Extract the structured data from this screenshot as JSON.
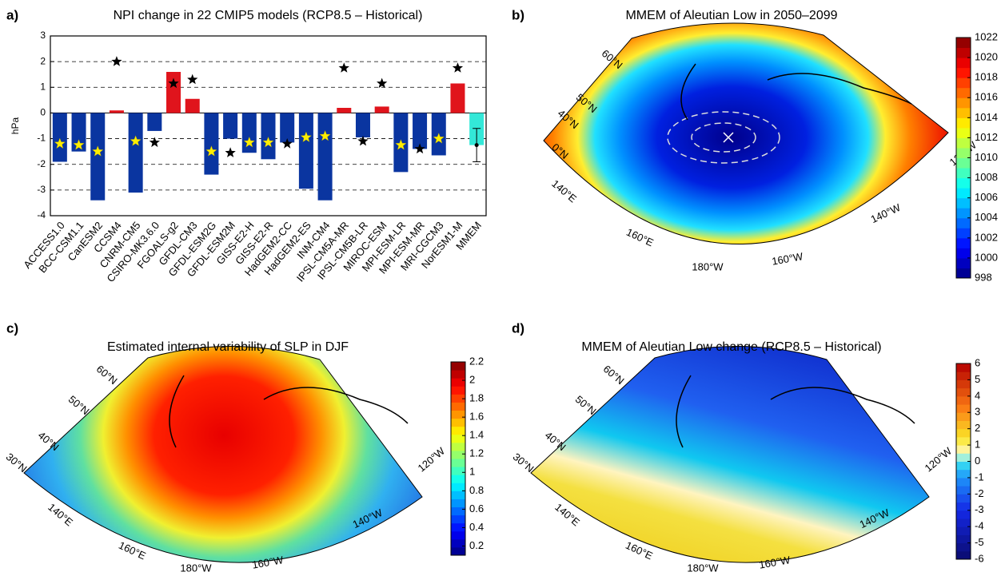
{
  "chart_data": [
    {
      "type": "bar",
      "panel": "a)",
      "title": "NPI change in 22 CMIP5 models (RCP8.5 – Historical)",
      "ylabel": "hPa",
      "categories": [
        "ACCESS1.0",
        "BCC-CSM1.1",
        "CanESM2",
        "CCSM4",
        "CNRM-CM5",
        "CSIRO-MK3.6.0",
        "FGOALS-g2",
        "GFDL-CM3",
        "GFDL-ESM2G",
        "GFDL-ESM2M",
        "GISS-E2-H",
        "GISS-E2-R",
        "HadGEM2-CC",
        "HadGEM2-ES",
        "INM-CM4",
        "IPSL-CM5A-MR",
        "IPSL-CM5B-LR",
        "MIROC-ESM",
        "MPI-ESM-LR",
        "MPI-ESM-MR",
        "MRI-CGCM3",
        "NorESM1-M",
        "MMEM"
      ],
      "values": [
        -1.9,
        -1.5,
        -3.4,
        0.1,
        -3.1,
        -0.7,
        1.6,
        0.55,
        -2.4,
        -1.0,
        -1.55,
        -1.8,
        -1.15,
        -2.95,
        -3.4,
        0.2,
        -0.95,
        0.25,
        -2.3,
        -1.4,
        -1.65,
        1.15,
        -1.25
      ],
      "colors": [
        "#0a35a0",
        "#0a35a0",
        "#0a35a0",
        "#e0141c",
        "#0a35a0",
        "#0a35a0",
        "#e0141c",
        "#e0141c",
        "#0a35a0",
        "#0a35a0",
        "#0a35a0",
        "#0a35a0",
        "#0a35a0",
        "#0a35a0",
        "#0a35a0",
        "#e0141c",
        "#0a35a0",
        "#e0141c",
        "#0a35a0",
        "#0a35a0",
        "#0a35a0",
        "#e0141c",
        "#33e8d8"
      ],
      "star_values": [
        -1.2,
        -1.25,
        -1.5,
        2.0,
        -1.1,
        -1.15,
        1.15,
        1.3,
        -1.5,
        -1.55,
        -1.15,
        -1.15,
        -1.2,
        -0.95,
        -0.9,
        1.75,
        -1.1,
        1.15,
        -1.25,
        -1.4,
        -1.0,
        1.75,
        null
      ],
      "star_colors": [
        "#ffee00",
        "#ffee00",
        "#ffee00",
        "#000000",
        "#ffee00",
        "#000000",
        "#000000",
        "#000000",
        "#ffee00",
        "#000000",
        "#ffee00",
        "#ffee00",
        "#000000",
        "#ffee00",
        "#ffee00",
        "#000000",
        "#000000",
        "#000000",
        "#ffee00",
        "#000000",
        "#ffee00",
        "#000000",
        null
      ],
      "errors": [
        null,
        null,
        null,
        null,
        null,
        null,
        null,
        null,
        null,
        null,
        null,
        null,
        null,
        null,
        null,
        null,
        null,
        null,
        null,
        null,
        null,
        null,
        0.65
      ],
      "ylim": [
        -4,
        3
      ],
      "yticks": [
        -4,
        -3,
        -2,
        -1,
        0,
        1,
        2,
        3
      ],
      "grid": true
    },
    {
      "type": "map",
      "panel": "b)",
      "title": "MMEM of Aleutian Low in 2050–2099",
      "colormap": "jet",
      "lat_labels": [
        "60°N",
        "50°N",
        "40°N",
        "0°N"
      ],
      "lon_labels": [
        "140°E",
        "160°E",
        "180°W",
        "160°W",
        "140°W",
        "120°W"
      ],
      "ylim": [
        998,
        1022
      ],
      "yticks": [
        998,
        1000,
        1002,
        1004,
        1006,
        1008,
        1010,
        1012,
        1014,
        1016,
        1018,
        1020,
        1022
      ]
    },
    {
      "type": "map",
      "panel": "c)",
      "title": "Estimated internal variability of SLP in DJF",
      "colormap": "jet",
      "lat_labels": [
        "60°N",
        "50°N",
        "40°N",
        "30°N"
      ],
      "lon_labels": [
        "140°E",
        "160°E",
        "180°W",
        "160°W",
        "140°W",
        "120°W"
      ],
      "ylim": [
        0.1,
        2.2
      ],
      "yticks": [
        0.2,
        0.4,
        0.6,
        0.8,
        1,
        1.2,
        1.4,
        1.6,
        1.8,
        2,
        2.2
      ]
    },
    {
      "type": "map",
      "panel": "d)",
      "title": "MMEM of Aleutian Low change (RCP8.5 – Historical)",
      "colormap": "diverging",
      "lat_labels": [
        "60°N",
        "50°N",
        "40°N",
        "30°N"
      ],
      "lon_labels": [
        "140°E",
        "160°E",
        "180°W",
        "160°W",
        "140°W",
        "120°W"
      ],
      "ylim": [
        -6,
        6
      ],
      "yticks": [
        -6,
        -5,
        -4,
        -3,
        -2,
        -1,
        0,
        1,
        2,
        3,
        4,
        5,
        6
      ]
    }
  ]
}
